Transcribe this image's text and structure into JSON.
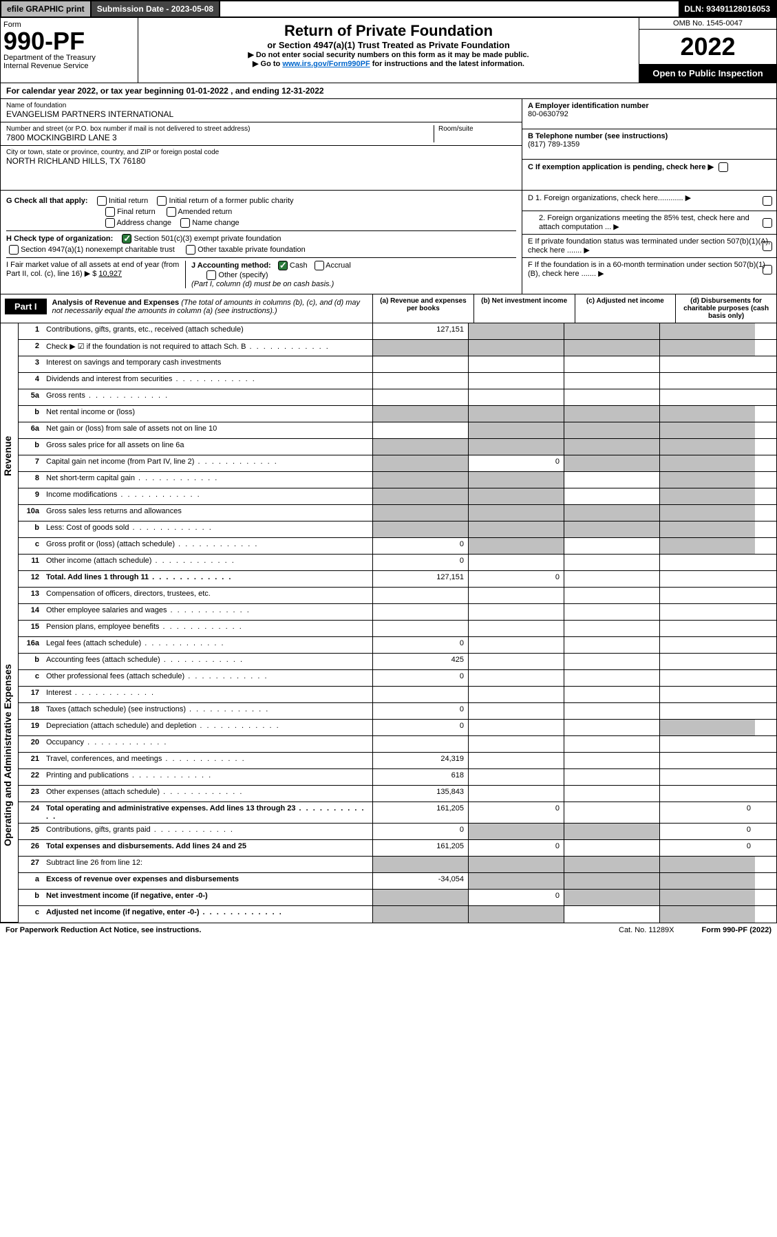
{
  "topbar": {
    "efile": "efile GRAPHIC print",
    "submission": "Submission Date - 2023-05-08",
    "dln": "DLN: 93491128016053"
  },
  "header": {
    "form_label": "Form",
    "form_number": "990-PF",
    "dept": "Department of the Treasury",
    "irs": "Internal Revenue Service",
    "title": "Return of Private Foundation",
    "subtitle": "or Section 4947(a)(1) Trust Treated as Private Foundation",
    "note1": "▶ Do not enter social security numbers on this form as it may be made public.",
    "note2_pre": "▶ Go to ",
    "note2_link": "www.irs.gov/Form990PF",
    "note2_post": " for instructions and the latest information.",
    "omb": "OMB No. 1545-0047",
    "year": "2022",
    "inspect": "Open to Public Inspection"
  },
  "cal_year": "For calendar year 2022, or tax year beginning 01-01-2022                    , and ending 12-31-2022",
  "foundation": {
    "name_label": "Name of foundation",
    "name": "EVANGELISM PARTNERS INTERNATIONAL",
    "street_label": "Number and street (or P.O. box number if mail is not delivered to street address)",
    "street": "7800 MOCKINGBIRD LANE 3",
    "room_label": "Room/suite",
    "city_label": "City or town, state or province, country, and ZIP or foreign postal code",
    "city": "NORTH RICHLAND HILLS, TX  76180",
    "ein_label": "A Employer identification number",
    "ein": "80-0630792",
    "phone_label": "B Telephone number (see instructions)",
    "phone": "(817) 789-1359",
    "c_label": "C If exemption application is pending, check here ▶"
  },
  "checks": {
    "g_label": "G Check all that apply:",
    "g1": "Initial return",
    "g2": "Initial return of a former public charity",
    "g3": "Final return",
    "g4": "Amended return",
    "g5": "Address change",
    "g6": "Name change",
    "h_label": "H Check type of organization:",
    "h1": "Section 501(c)(3) exempt private foundation",
    "h2": "Section 4947(a)(1) nonexempt charitable trust",
    "h3": "Other taxable private foundation",
    "i_label": "I Fair market value of all assets at end of year (from Part II, col. (c), line 16) ▶ $",
    "i_val": "10,927",
    "j_label": "J Accounting method:",
    "j1": "Cash",
    "j2": "Accrual",
    "j3": "Other (specify)",
    "j_note": "(Part I, column (d) must be on cash basis.)",
    "d1": "D 1. Foreign organizations, check here............ ▶",
    "d2": "2. Foreign organizations meeting the 85% test, check here and attach computation ... ▶",
    "e": "E  If private foundation status was terminated under section 507(b)(1)(A), check here ....... ▶",
    "f": "F  If the foundation is in a 60-month termination under section 507(b)(1)(B), check here ....... ▶"
  },
  "part1": {
    "label": "Part I",
    "title": "Analysis of Revenue and Expenses",
    "title_note": " (The total of amounts in columns (b), (c), and (d) may not necessarily equal the amounts in column (a) (see instructions).)",
    "col_a": "(a)   Revenue and expenses per books",
    "col_b": "(b)   Net investment income",
    "col_c": "(c)   Adjusted net income",
    "col_d": "(d)   Disbursements for charitable purposes (cash basis only)"
  },
  "side_labels": {
    "revenue": "Revenue",
    "expenses": "Operating and Administrative Expenses"
  },
  "rows": [
    {
      "n": "1",
      "label": "Contributions, gifts, grants, etc., received (attach schedule)",
      "a": "127,151",
      "shade_bcd": true
    },
    {
      "n": "2",
      "label": "Check ▶ ☑ if the foundation is not required to attach Sch. B",
      "dots": true,
      "shade_all": true
    },
    {
      "n": "3",
      "label": "Interest on savings and temporary cash investments"
    },
    {
      "n": "4",
      "label": "Dividends and interest from securities",
      "dots": true
    },
    {
      "n": "5a",
      "label": "Gross rents",
      "dots": true
    },
    {
      "n": "b",
      "label": "Net rental income or (loss)",
      "shade_all": true
    },
    {
      "n": "6a",
      "label": "Net gain or (loss) from sale of assets not on line 10",
      "shade_bcd": true
    },
    {
      "n": "b",
      "label": "Gross sales price for all assets on line 6a",
      "shade_all": true
    },
    {
      "n": "7",
      "label": "Capital gain net income (from Part IV, line 2)",
      "dots": true,
      "b": "0",
      "shade_a": true,
      "shade_cd": true
    },
    {
      "n": "8",
      "label": "Net short-term capital gain",
      "dots": true,
      "shade_ab": true,
      "shade_d": true
    },
    {
      "n": "9",
      "label": "Income modifications",
      "dots": true,
      "shade_ab": true,
      "shade_d": true
    },
    {
      "n": "10a",
      "label": "Gross sales less returns and allowances",
      "shade_all": true
    },
    {
      "n": "b",
      "label": "Less: Cost of goods sold",
      "dots": true,
      "shade_all": true
    },
    {
      "n": "c",
      "label": "Gross profit or (loss) (attach schedule)",
      "dots": true,
      "a": "0",
      "shade_b": true,
      "shade_d": true
    },
    {
      "n": "11",
      "label": "Other income (attach schedule)",
      "dots": true,
      "a": "0"
    },
    {
      "n": "12",
      "label": "Total. Add lines 1 through 11",
      "bold": true,
      "dots": true,
      "a": "127,151",
      "b": "0"
    },
    {
      "n": "13",
      "label": "Compensation of officers, directors, trustees, etc."
    },
    {
      "n": "14",
      "label": "Other employee salaries and wages",
      "dots": true
    },
    {
      "n": "15",
      "label": "Pension plans, employee benefits",
      "dots": true
    },
    {
      "n": "16a",
      "label": "Legal fees (attach schedule)",
      "dots": true,
      "a": "0"
    },
    {
      "n": "b",
      "label": "Accounting fees (attach schedule)",
      "dots": true,
      "a": "425"
    },
    {
      "n": "c",
      "label": "Other professional fees (attach schedule)",
      "dots": true,
      "a": "0"
    },
    {
      "n": "17",
      "label": "Interest",
      "dots": true
    },
    {
      "n": "18",
      "label": "Taxes (attach schedule) (see instructions)",
      "dots": true,
      "a": "0"
    },
    {
      "n": "19",
      "label": "Depreciation (attach schedule) and depletion",
      "dots": true,
      "a": "0",
      "shade_d": true
    },
    {
      "n": "20",
      "label": "Occupancy",
      "dots": true
    },
    {
      "n": "21",
      "label": "Travel, conferences, and meetings",
      "dots": true,
      "a": "24,319"
    },
    {
      "n": "22",
      "label": "Printing and publications",
      "dots": true,
      "a": "618"
    },
    {
      "n": "23",
      "label": "Other expenses (attach schedule)",
      "dots": true,
      "a": "135,843"
    },
    {
      "n": "24",
      "label": "Total operating and administrative expenses. Add lines 13 through 23",
      "bold": true,
      "dots": true,
      "a": "161,205",
      "b": "0",
      "d": "0"
    },
    {
      "n": "25",
      "label": "Contributions, gifts, grants paid",
      "dots": true,
      "a": "0",
      "d": "0",
      "shade_bc": true
    },
    {
      "n": "26",
      "label": "Total expenses and disbursements. Add lines 24 and 25",
      "bold": true,
      "a": "161,205",
      "b": "0",
      "d": "0"
    },
    {
      "n": "27",
      "label": "Subtract line 26 from line 12:",
      "shade_all": true
    },
    {
      "n": "a",
      "label": "Excess of revenue over expenses and disbursements",
      "bold": true,
      "a": "-34,054",
      "shade_bcd": true
    },
    {
      "n": "b",
      "label": "Net investment income (if negative, enter -0-)",
      "bold": true,
      "b": "0",
      "shade_a": true,
      "shade_cd": true
    },
    {
      "n": "c",
      "label": "Adjusted net income (if negative, enter -0-)",
      "bold": true,
      "dots": true,
      "shade_ab": true,
      "shade_d": true
    }
  ],
  "footer": {
    "left": "For Paperwork Reduction Act Notice, see instructions.",
    "mid": "Cat. No. 11289X",
    "right": "Form 990-PF (2022)"
  }
}
